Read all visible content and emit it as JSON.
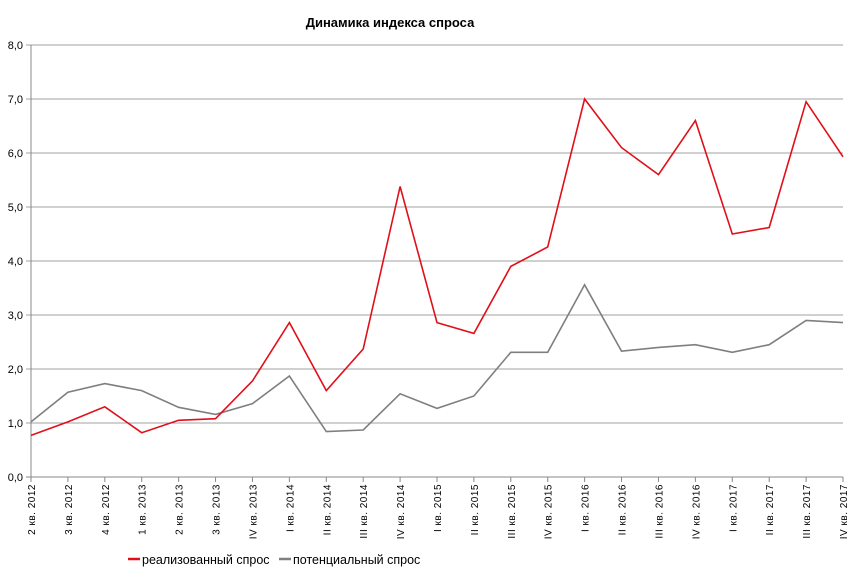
{
  "chart_data": {
    "type": "line",
    "title": "Динамика индекса спроса",
    "xlabel": "",
    "ylabel": "",
    "ylim": [
      0,
      8
    ],
    "yticks": [
      "0,0",
      "1,0",
      "2,0",
      "3,0",
      "4,0",
      "5,0",
      "6,0",
      "7,0",
      "8,0"
    ],
    "grid": true,
    "legend_position": "bottom",
    "categories": [
      "2 кв. 2012",
      "3 кв. 2012",
      "4 кв. 2012",
      "1 кв. 2013",
      "2 кв. 2013",
      "3 кв. 2013",
      "IV кв. 2013",
      "I кв. 2014",
      "II кв. 2014",
      "III кв. 2014",
      "IV кв. 2014",
      "I кв. 2015",
      "II кв. 2015",
      "III кв. 2015",
      "IV кв. 2015",
      "I кв. 2016",
      "II кв. 2016",
      "III кв. 2016",
      "IV кв. 2016",
      "I кв. 2017",
      "II кв. 2017",
      "III кв. 2017",
      "IV кв. 2017"
    ],
    "series": [
      {
        "name": "реализованный спрос",
        "color": "#e0101a",
        "values": [
          0.77,
          1.02,
          1.3,
          0.82,
          1.05,
          1.08,
          1.78,
          2.86,
          1.6,
          2.37,
          5.38,
          2.86,
          2.66,
          3.9,
          4.26,
          7.0,
          6.1,
          5.6,
          6.6,
          4.5,
          4.62,
          6.95,
          5.93
        ]
      },
      {
        "name": "потенциальный спрос",
        "color": "#7f7f7f",
        "values": [
          1.02,
          1.57,
          1.73,
          1.6,
          1.29,
          1.16,
          1.36,
          1.87,
          0.84,
          0.87,
          1.54,
          1.27,
          1.5,
          2.31,
          2.31,
          3.56,
          2.33,
          2.4,
          2.45,
          2.31,
          2.45,
          2.9,
          2.86
        ]
      }
    ]
  }
}
